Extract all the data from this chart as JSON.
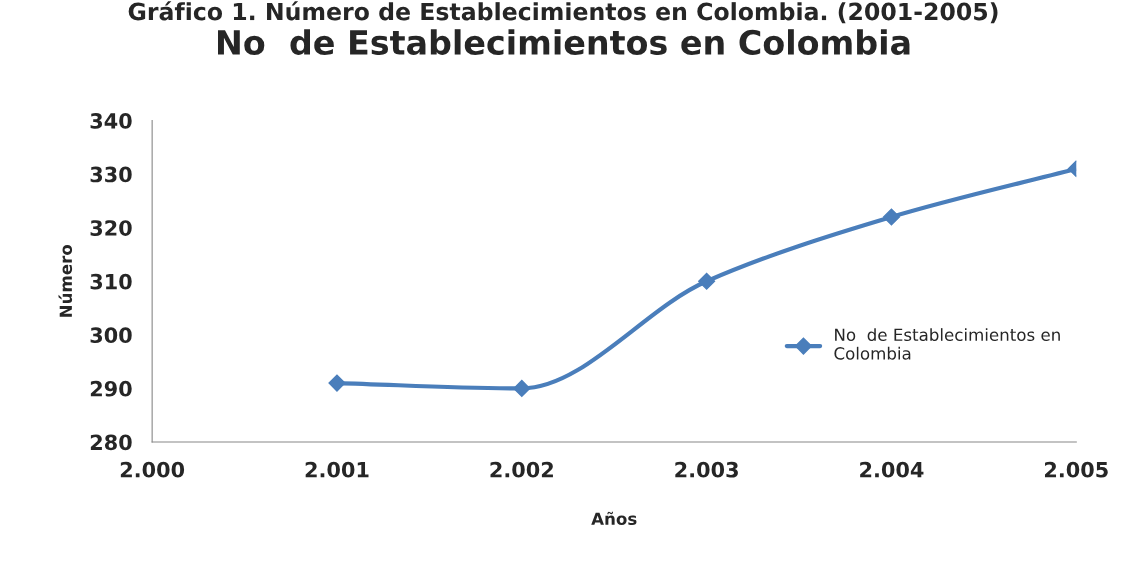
{
  "chart_data": {
    "type": "line",
    "annotations": [
      "Gráfico 1. Número de Establecimientos en Colombia. (2001-2005)"
    ],
    "title": "No  de Establecimientos en Colombia",
    "xlabel": "Años",
    "ylabel": "Número",
    "x": [
      2001,
      2002,
      2003,
      2004,
      2005
    ],
    "series": [
      {
        "name": "No  de Establecimientos en Colombia",
        "color": "#4a7ebb",
        "values": [
          291,
          290,
          310,
          322,
          331
        ]
      }
    ],
    "xlim": [
      2000,
      2005
    ],
    "xticks": [
      {
        "value": 2000,
        "label": "2.000"
      },
      {
        "value": 2001,
        "label": "2.001"
      },
      {
        "value": 2002,
        "label": "2.002"
      },
      {
        "value": 2003,
        "label": "2.003"
      },
      {
        "value": 2004,
        "label": "2.004"
      },
      {
        "value": 2005,
        "label": "2.005"
      }
    ],
    "ylim": [
      280,
      340
    ],
    "yticks": [
      280,
      290,
      300,
      310,
      320,
      330,
      340
    ],
    "marker": "diamond",
    "line_style": "solid",
    "grid": false,
    "legend": "right"
  }
}
